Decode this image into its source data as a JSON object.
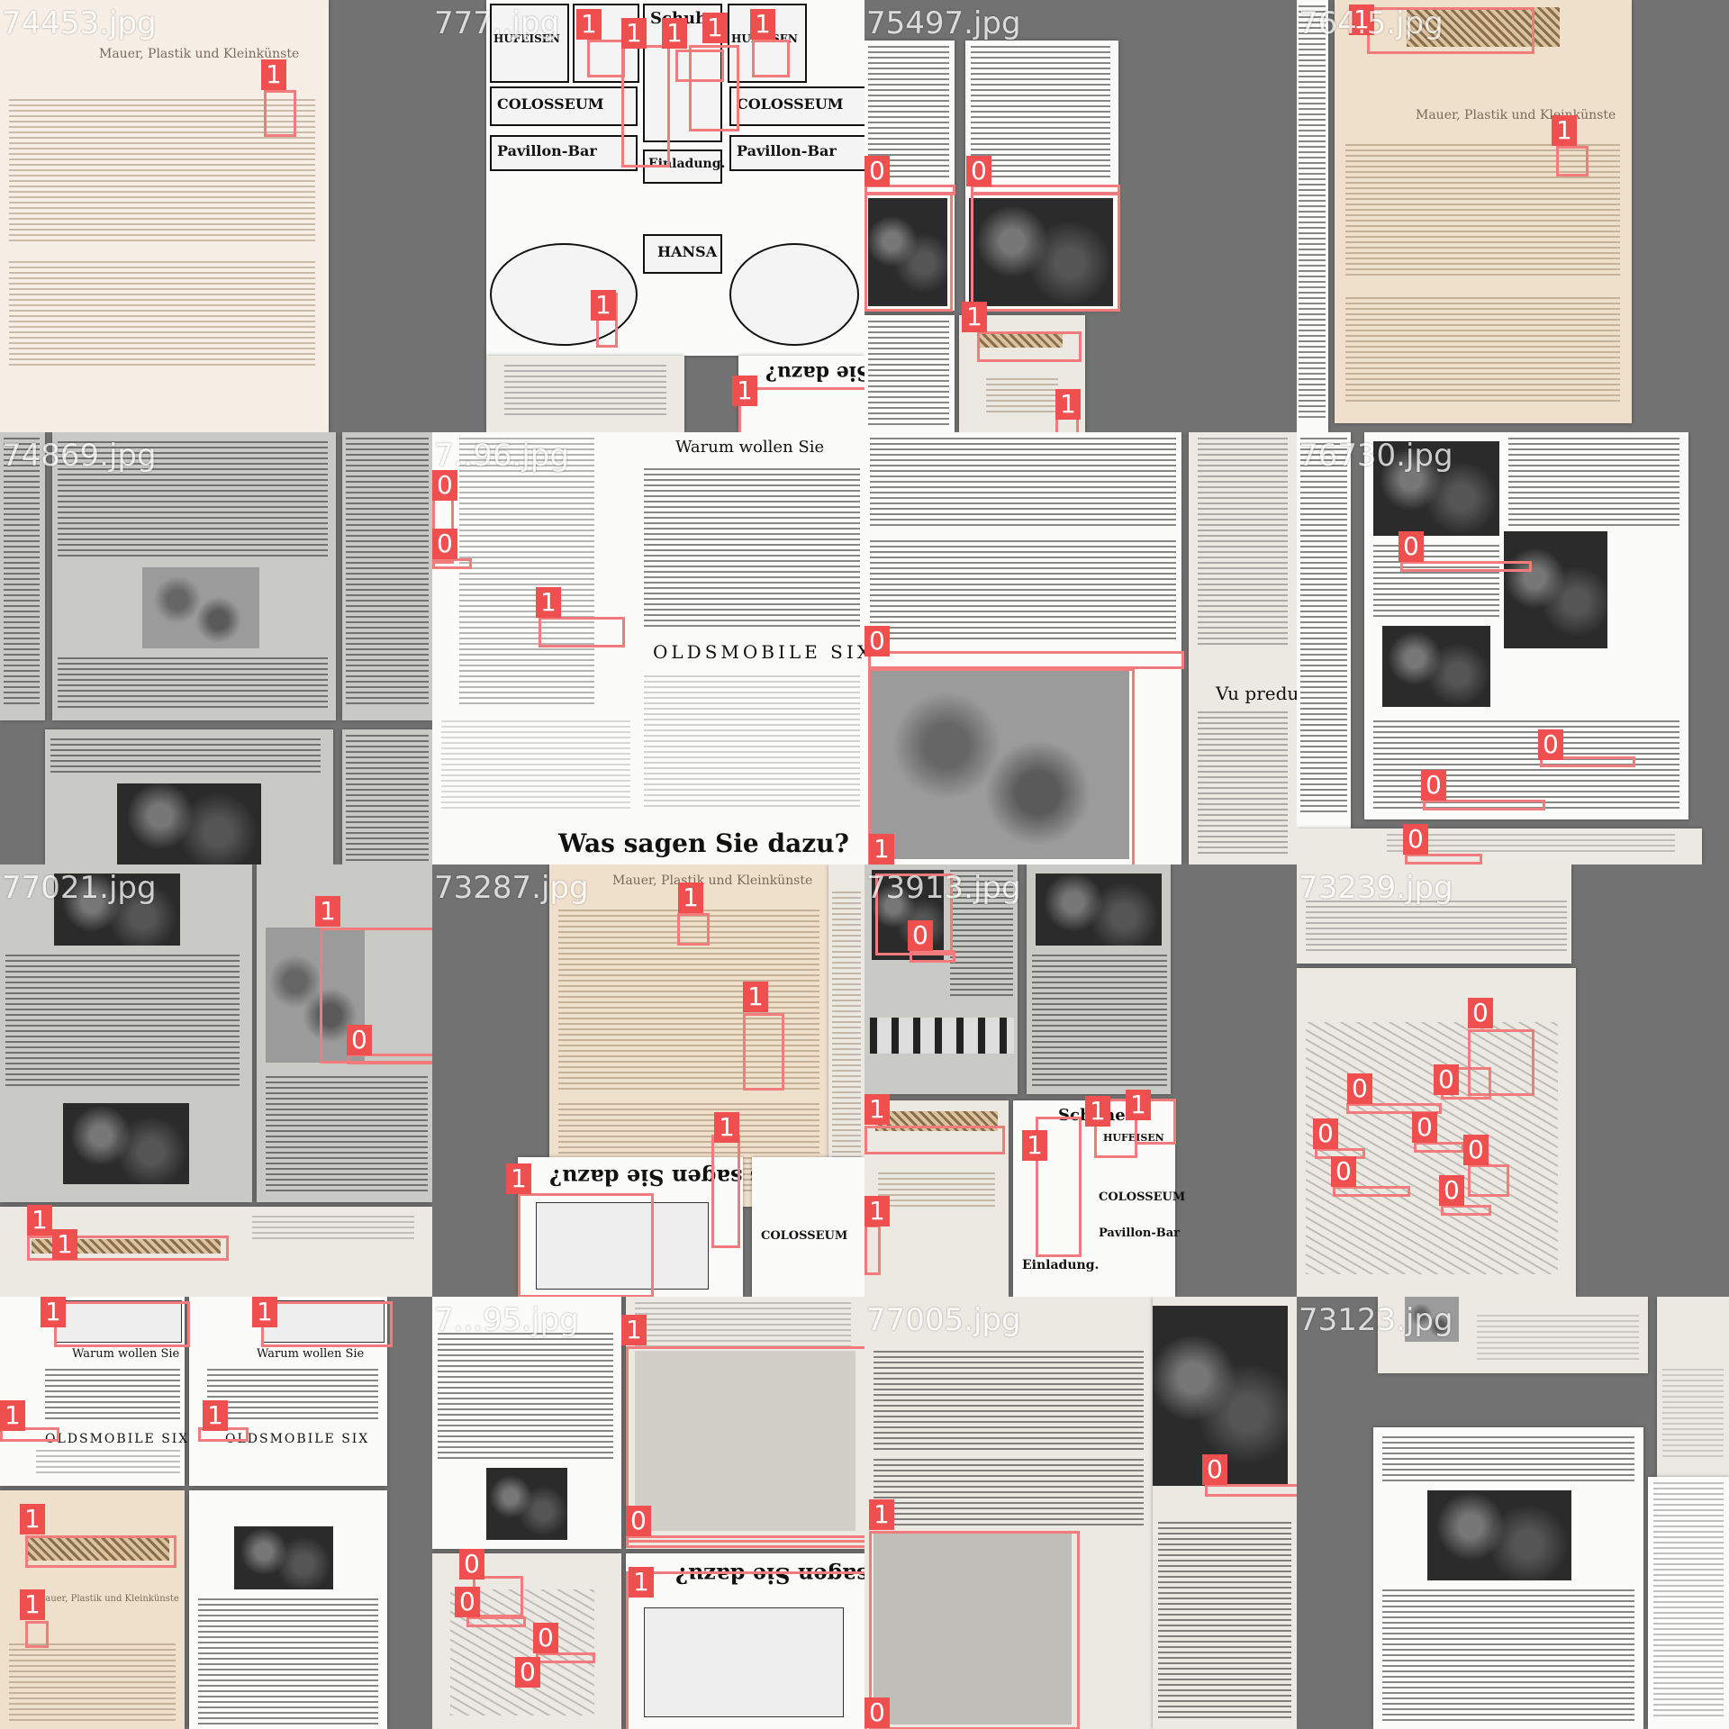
{
  "tiles": [
    {
      "file": "74453.jpg"
    },
    {
      "file": "777..jpg"
    },
    {
      "file": "75497.jpg"
    },
    {
      "file": "764.5.jpg"
    },
    {
      "file": "74869.jpg"
    },
    {
      "file": "7..96.jpg"
    },
    {
      "file": ""
    },
    {
      "file": "76730.jpg"
    },
    {
      "file": "77021.jpg"
    },
    {
      "file": "73287.jpg"
    },
    {
      "file": "73913.jpg"
    },
    {
      "file": "73239.jpg"
    },
    {
      "file": ""
    },
    {
      "file": "7...95.jpg"
    },
    {
      "file": "77005.jpg"
    },
    {
      "file": "73123.jpg"
    }
  ],
  "labels": {
    "zero": "0",
    "one": "1"
  },
  "ads": {
    "schuhe": "Schuhe",
    "hufeisen": "HUFEISEN",
    "colosseum": "COLOSSEUM",
    "pavillon": "Pavillon-Bar",
    "einladung": "Einladung.",
    "hansa": "HANSA",
    "was_sagen": "Was sagen Sie dazu?",
    "warum": "Warum wollen Sie",
    "oldsmobile": "OLDSMOBILE SIX",
    "vu_predu": "Vu predu!"
  },
  "colors": {
    "box": "#f27b7b",
    "label_bg": "#ef4f4f",
    "background": "#6e6e6e"
  }
}
